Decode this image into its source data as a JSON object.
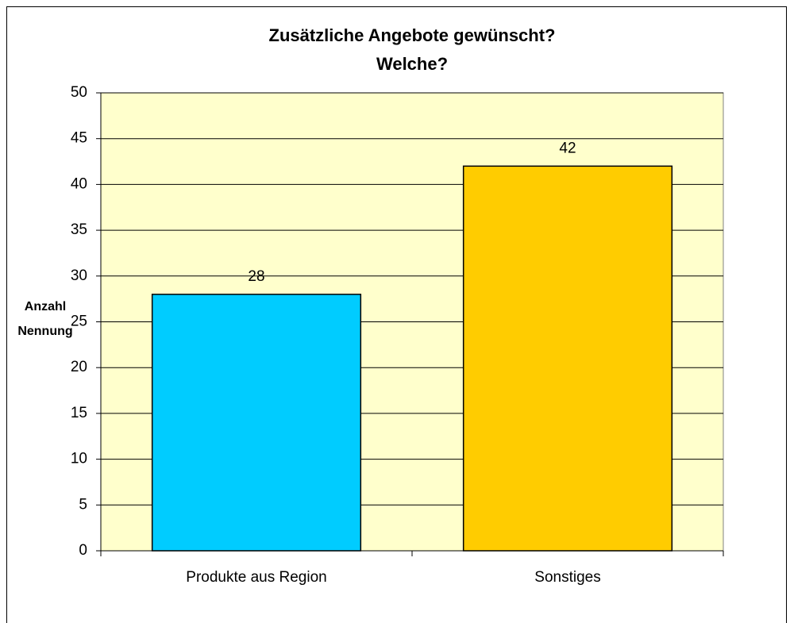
{
  "chart_data": {
    "type": "bar",
    "title": [
      "Zusätzliche Angebote gewünscht?",
      "Welche?"
    ],
    "ylabel": [
      "Anzahl",
      "Nennung"
    ],
    "categories": [
      "Produkte aus Region",
      "Sonstiges"
    ],
    "values": [
      28,
      42
    ],
    "colors": [
      "#00ccff",
      "#ffcc00"
    ],
    "ylim": [
      0,
      50
    ],
    "yticks": [
      0,
      5,
      10,
      15,
      20,
      25,
      30,
      35,
      40,
      45,
      50
    ],
    "grid": true,
    "plot_background": "#ffffcc"
  }
}
